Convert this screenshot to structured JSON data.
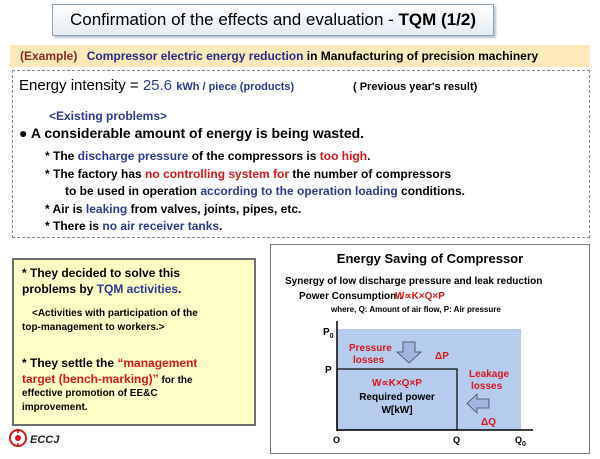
{
  "header": {
    "title_prefix": "Confirmation of the effects and evaluation  - ",
    "title_bold": "TQM  (1/2)"
  },
  "example": {
    "tag": "(Example)",
    "topic": "Compressor electric energy reduction",
    "context": "in Manufacturing of precision machinery"
  },
  "intensity": {
    "label": "Energy intensity = ",
    "value": "25.6",
    "unit": "kWh / piece (products)",
    "note": "( Previous year's result)"
  },
  "problems": {
    "heading": "<Existing problems>",
    "summary": "A considerable amount of energy is being wasted.",
    "p1_a": "* The ",
    "p1_b": "discharge pressure",
    "p1_c": " of the compressors is  ",
    "p1_d": "too high",
    "p1_e": ".",
    "p2_a": "* The factory has ",
    "p2_b": "no controlling system for",
    "p2_c": " the number of compressors",
    "p2_d": "to be used in operation ",
    "p2_e": "according to the operation loading",
    "p2_f": " conditions.",
    "p3_a": "*  Air is ",
    "p3_b": "leaking",
    "p3_c": " from valves, joints, pipes, etc.",
    "p4_a": "* There is ",
    "p4_b": "no air receiver tanks",
    "p4_c": "."
  },
  "solution": {
    "s1_a": "* They decided to solve this",
    "s1_b": "problems by ",
    "s1_c": "TQM activities",
    "s1_d": ".",
    "s2_a": "<Activities with participation of the",
    "s2_b": "top-management to workers.>",
    "s3_a": "* They settle the ",
    "s3_b": "“management",
    "s3_c": "target (bench-marking)”",
    "s3_d": "  for the",
    "s3_e": "effective promotion  of  EE&C",
    "s3_f": "improvement."
  },
  "diagram": {
    "title": "Energy Saving of Compressor",
    "subtitle": "Synergy of low discharge pressure and leak reduction",
    "power_label": "Power Consumption :",
    "power_formula": "W∝K×Q×P",
    "where": "where, Q: Amount of air flow, P: Air pressure",
    "p0": "P",
    "p0_sub": "0",
    "p": "P",
    "origin": "O",
    "q": "Q",
    "q0": "Q",
    "q0_sub": "0",
    "pressure_losses_1": "Pressure",
    "pressure_losses_2": "losses",
    "delta_p": "ΔP",
    "leakage_1": "Leakage",
    "leakage_2": "losses",
    "delta_q": "ΔQ",
    "inner_formula": "W∝K×Q×P",
    "required_1": "Required power",
    "required_2": "W[kW]"
  },
  "footer": {
    "logo_text": "ECCJ"
  },
  "colors": {
    "blue": "#2c3a94",
    "red": "#d8161b",
    "diagram_fill": "#b5ccee"
  }
}
